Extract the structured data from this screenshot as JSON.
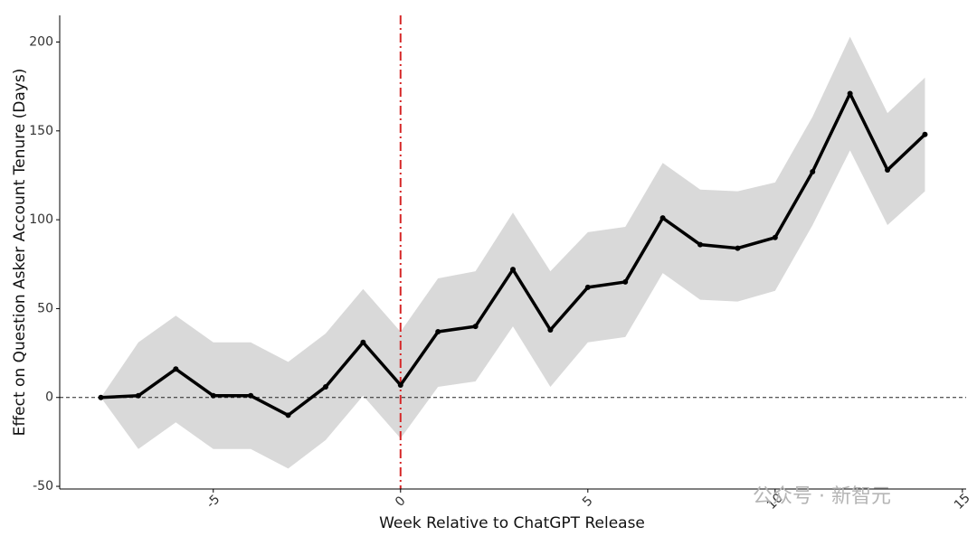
{
  "chart_data": {
    "type": "line",
    "x_label": "Week Relative to ChatGPT Release",
    "y_label": "Effect on Question Asker Account Tenure (Days)",
    "watermark": "公众号 · 新智元",
    "x": [
      -8,
      -7,
      -6,
      -5,
      -4,
      -3,
      -2,
      -1,
      0,
      1,
      2,
      3,
      4,
      5,
      6,
      7,
      8,
      9,
      10,
      11,
      12,
      13,
      14
    ],
    "values": [
      0,
      1,
      16,
      1,
      1,
      -10,
      6,
      31,
      7,
      37,
      40,
      72,
      38,
      62,
      65,
      101,
      86,
      84,
      90,
      127,
      171,
      128,
      148
    ],
    "lower": [
      0,
      -29,
      -14,
      -29,
      -29,
      -40,
      -24,
      1,
      -23,
      6,
      9,
      40,
      6,
      31,
      34,
      70,
      55,
      54,
      60,
      97,
      139,
      97,
      116
    ],
    "upper": [
      0,
      31,
      46,
      31,
      31,
      20,
      36,
      61,
      37,
      67,
      71,
      104,
      71,
      93,
      96,
      132,
      117,
      116,
      121,
      158,
      203,
      160,
      180
    ],
    "color": "#000000",
    "band_color": "#d9d9d9",
    "xlim": [
      -9.1,
      15.1
    ],
    "ylim": [
      -51.5,
      215
    ],
    "xticks": [
      -5,
      0,
      5,
      10,
      15
    ],
    "yticks": [
      -50,
      0,
      50,
      100,
      150,
      200
    ],
    "vline": 0,
    "vline_color": "#d62728",
    "hline": 0
  }
}
